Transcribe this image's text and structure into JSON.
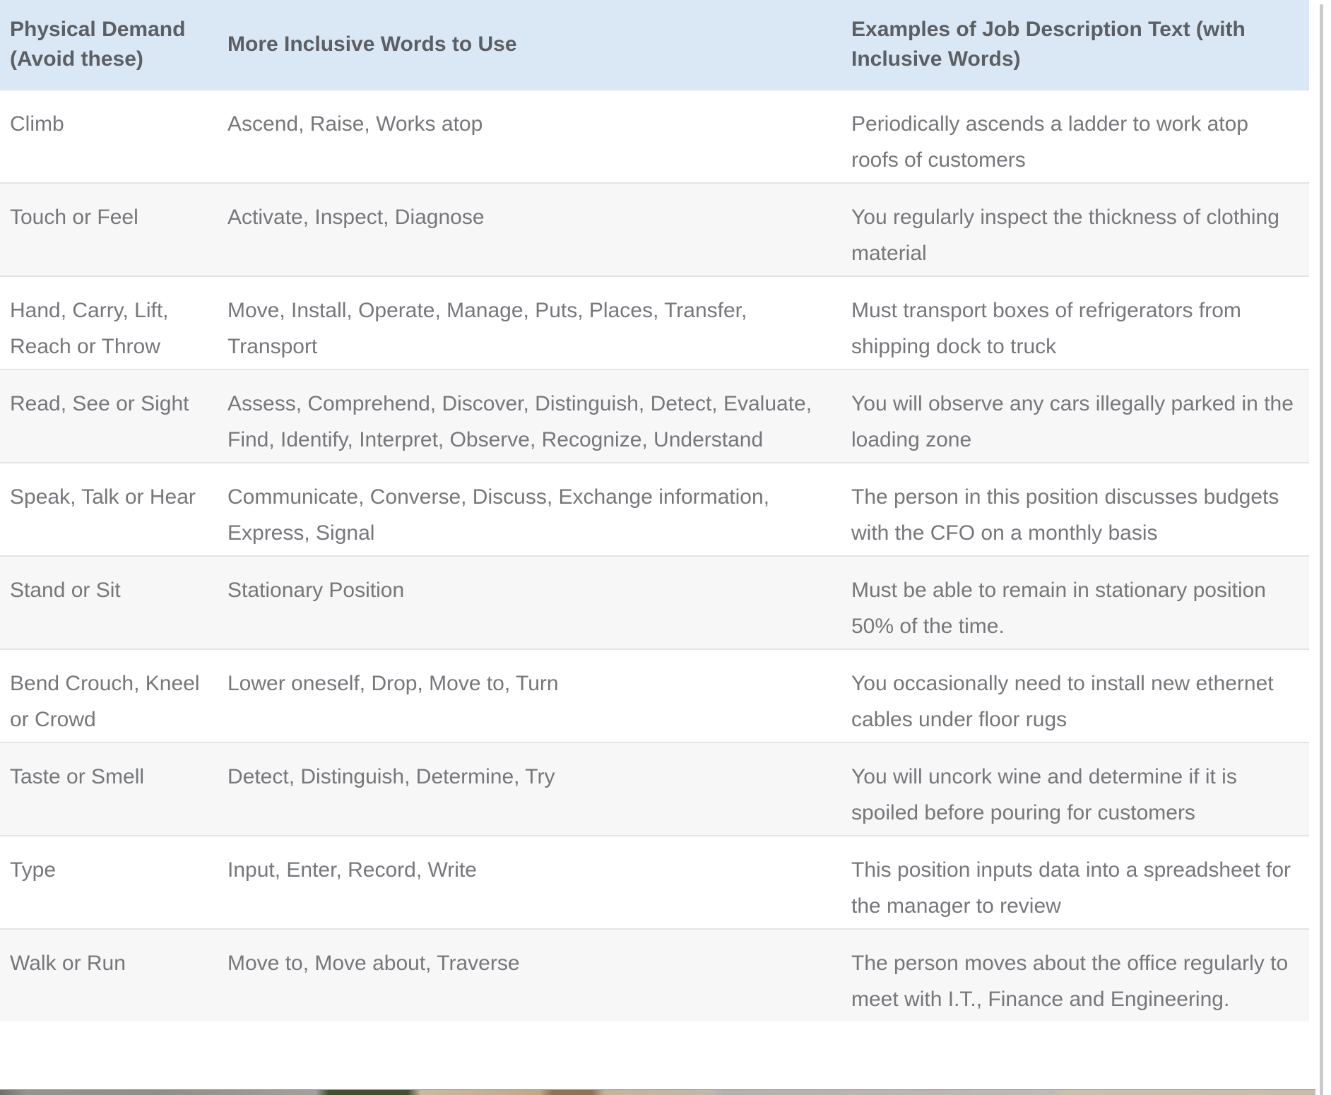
{
  "colors": {
    "header_bg": "#d9e8f4",
    "header_text": "#5b5e63",
    "body_text": "#76777b",
    "row_alt_bg": "#f7f7f7",
    "row_border": "#e4e4e4",
    "scroll_line": "#cacaca"
  },
  "table": {
    "columns": [
      {
        "label": "Physical Demand (Avoid these)"
      },
      {
        "label": "More Inclusive Words to Use"
      },
      {
        "label": "Examples of Job Description Text (with Inclusive Words)"
      }
    ],
    "rows": [
      {
        "demand": "Climb",
        "inclusive": "Ascend, Raise, Works atop",
        "example": "Periodically ascends a ladder to work atop roofs of customers"
      },
      {
        "demand": "Touch or Feel",
        "inclusive": "Activate, Inspect, Diagnose",
        "example": "You regularly inspect the thickness of clothing material"
      },
      {
        "demand": "Hand, Carry, Lift, Reach or Throw",
        "inclusive": "Move, Install, Operate, Manage, Puts, Places, Transfer, Transport",
        "example": "Must transport boxes of refrigerators from shipping dock to truck"
      },
      {
        "demand": "Read, See or Sight",
        "inclusive": "Assess, Comprehend, Discover, Distinguish, Detect, Evaluate, Find, Identify, Interpret, Observe, Recognize, Understand",
        "example": "You will observe any cars illegally parked in the loading zone"
      },
      {
        "demand": "Speak, Talk or Hear",
        "inclusive": "Communicate, Converse, Discuss, Exchange information, Express, Signal",
        "example": "The person in this position discusses budgets with the CFO on a monthly basis"
      },
      {
        "demand": "Stand or Sit",
        "inclusive": "Stationary Position",
        "example": "Must be able to remain in stationary position 50% of the time."
      },
      {
        "demand": "Bend Crouch, Kneel or Crowd",
        "inclusive": "Lower oneself, Drop, Move to, Turn",
        "example": "You occasionally need to install new ethernet cables under floor rugs"
      },
      {
        "demand": "Taste or Smell",
        "inclusive": "Detect, Distinguish, Determine, Try",
        "example": "You will uncork wine and determine if it is spoiled before pouring for customers"
      },
      {
        "demand": "Type",
        "inclusive": "Input, Enter, Record, Write",
        "example": "This position inputs data into a spreadsheet for the manager to review"
      },
      {
        "demand": "Walk or Run",
        "inclusive": "Move to, Move about, Traverse",
        "example": "The person moves about the office regularly to meet with I.T., Finance and Engineering."
      }
    ]
  }
}
